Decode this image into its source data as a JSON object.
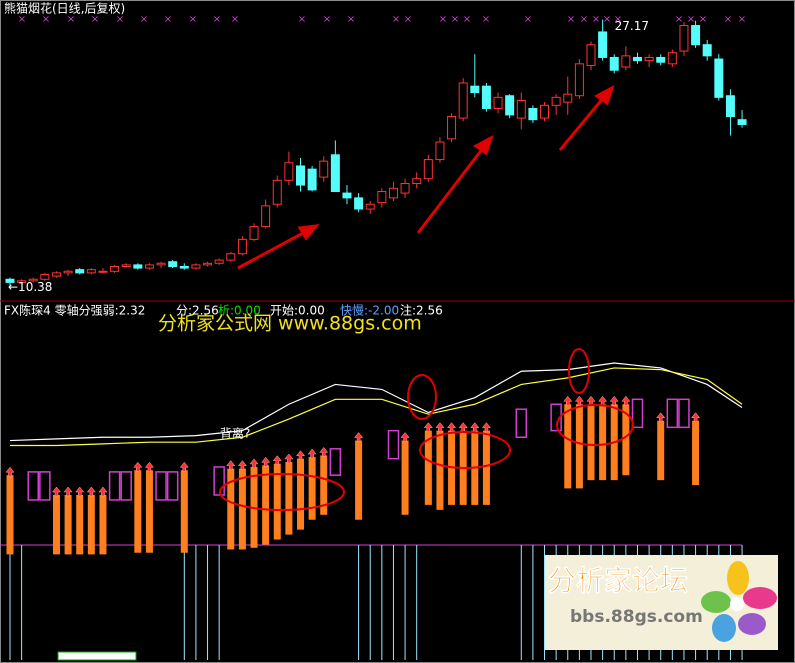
{
  "chart_data": [
    {
      "type": "candlestick",
      "title": "熊猫烟花(日线,后复权)",
      "high_label": "27.17",
      "low_label": "←10.38",
      "ylim": [
        9.6,
        28.4
      ],
      "up_color": "#ff3232",
      "down_color": "#54fcfc",
      "open": [
        10.9,
        10.7,
        10.8,
        10.9,
        11.1,
        11.3,
        11.5,
        11.3,
        11.4,
        11.4,
        11.7,
        11.8,
        11.6,
        11.8,
        12.0,
        11.7,
        11.6,
        11.8,
        11.9,
        12.1,
        12.5,
        13.4,
        14.2,
        15.6,
        17.1,
        18.0,
        17.8,
        17.3,
        18.7,
        16.3,
        16.0,
        15.3,
        15.7,
        16.0,
        16.3,
        16.9,
        17.2,
        18.4,
        19.7,
        21.0,
        23.0,
        23.0,
        21.6,
        22.4,
        21.0,
        21.6,
        21.0,
        21.8,
        22.0,
        22.4,
        24.3,
        26.4,
        24.8,
        24.2,
        24.8,
        24.6,
        24.8,
        24.4,
        25.2,
        26.8,
        25.6,
        24.7,
        22.4,
        20.9
      ],
      "high": [
        11.0,
        10.9,
        11.0,
        11.3,
        11.4,
        11.5,
        11.6,
        11.6,
        11.6,
        11.8,
        11.9,
        11.9,
        11.9,
        12.0,
        12.1,
        11.9,
        11.9,
        12.0,
        12.2,
        12.6,
        13.6,
        14.4,
        15.9,
        17.4,
        18.9,
        18.5,
        18.0,
        18.6,
        19.6,
        16.8,
        16.3,
        15.8,
        16.6,
        17.0,
        17.2,
        17.6,
        18.7,
        19.8,
        21.3,
        23.5,
        25.0,
        23.2,
        22.6,
        22.5,
        22.6,
        21.8,
        22.0,
        22.5,
        23.6,
        24.7,
        25.8,
        27.17,
        25.0,
        25.5,
        25.1,
        25.0,
        25.0,
        25.3,
        27.0,
        27.1,
        25.9,
        25.0,
        22.8,
        21.5
      ],
      "low": [
        10.38,
        10.6,
        10.7,
        10.8,
        11.0,
        11.1,
        11.2,
        11.2,
        11.3,
        11.3,
        11.6,
        11.5,
        11.5,
        11.6,
        11.6,
        11.5,
        11.5,
        11.7,
        11.8,
        12.0,
        12.4,
        13.3,
        14.1,
        15.4,
        16.8,
        16.4,
        16.4,
        17.0,
        16.4,
        15.6,
        15.1,
        15.0,
        15.4,
        15.8,
        16.0,
        16.6,
        17.0,
        18.2,
        19.5,
        20.8,
        22.3,
        21.4,
        21.3,
        21.0,
        20.3,
        20.7,
        20.8,
        21.2,
        21.2,
        22.2,
        24.0,
        24.6,
        23.8,
        24.0,
        24.4,
        24.2,
        24.3,
        24.2,
        24.9,
        25.4,
        24.6,
        22.1,
        19.9,
        20.4
      ],
      "close": [
        10.7,
        10.8,
        10.9,
        11.2,
        11.3,
        11.4,
        11.3,
        11.5,
        11.4,
        11.7,
        11.8,
        11.6,
        11.8,
        11.9,
        11.7,
        11.6,
        11.8,
        11.9,
        12.1,
        12.5,
        13.4,
        14.2,
        15.5,
        17.1,
        18.2,
        16.8,
        16.5,
        18.3,
        16.4,
        16.0,
        15.3,
        15.6,
        16.4,
        16.6,
        16.9,
        17.2,
        18.4,
        19.5,
        21.1,
        23.2,
        22.6,
        21.6,
        22.3,
        21.2,
        22.1,
        20.9,
        21.8,
        22.3,
        22.5,
        24.4,
        25.6,
        24.8,
        24.0,
        24.9,
        24.6,
        24.8,
        24.5,
        25.1,
        26.8,
        25.6,
        24.9,
        22.3,
        21.1,
        20.6
      ]
    },
    {
      "type": "indicator",
      "title": "FX陈琛4 零轴分强弱:2.32",
      "readouts": [
        {
          "text": "分:2.56",
          "color": "#ffffff"
        },
        {
          "text": "析:0.00",
          "color": "#00e000"
        },
        {
          "text": "开始:0.00",
          "color": "#ffffff"
        },
        {
          "text": "快慢:-2.00",
          "color": "#5aa0ff"
        },
        {
          "text": "注:2.56",
          "color": "#ffffff"
        }
      ],
      "watermark": "分析家公式网 www.88gs.com",
      "annotation": "背离?",
      "logo": {
        "title": "分析家论坛",
        "url": "bbs.88gs.com"
      },
      "ylim": [
        -12,
        8
      ],
      "series": [
        {
          "name": "fast",
          "color": "#ffffff",
          "x": [
            0,
            4,
            8,
            12,
            16,
            20,
            24,
            28,
            32,
            36,
            40,
            44,
            48,
            52,
            56,
            60,
            63
          ],
          "values": [
            1.3,
            1.4,
            1.5,
            1.5,
            1.6,
            1.9,
            3.5,
            4.7,
            4.4,
            3.0,
            3.9,
            5.5,
            5.6,
            6.0,
            5.7,
            4.7,
            3.3
          ]
        },
        {
          "name": "slow",
          "color": "#ffff40",
          "x": [
            0,
            4,
            8,
            12,
            16,
            20,
            24,
            28,
            32,
            36,
            40,
            44,
            48,
            52,
            56,
            60,
            63
          ],
          "values": [
            1.0,
            1.0,
            1.1,
            1.2,
            1.2,
            1.5,
            2.6,
            3.8,
            3.8,
            2.9,
            3.5,
            4.7,
            5.1,
            5.7,
            5.6,
            5.0,
            3.5
          ]
        }
      ],
      "bars": {
        "color": "#ff7f1e",
        "x": [
          0,
          4,
          5,
          6,
          7,
          8,
          11,
          12,
          15,
          19,
          20,
          21,
          22,
          23,
          24,
          25,
          26,
          27,
          30,
          34,
          36,
          37,
          38,
          39,
          40,
          41,
          48,
          49,
          50,
          51,
          52,
          53,
          56,
          59
        ],
        "high": [
          -0.8,
          -2.0,
          -2.0,
          -2.0,
          -2.0,
          -2.0,
          -0.5,
          -0.5,
          -0.5,
          -0.4,
          -0.4,
          -0.3,
          -0.2,
          -0.1,
          0,
          0.2,
          0.3,
          0.4,
          1.3,
          1.3,
          1.9,
          1.9,
          1.9,
          1.9,
          1.9,
          1.9,
          3.5,
          3.5,
          3.5,
          3.5,
          3.5,
          3.5,
          2.5,
          2.5
        ],
        "low": [
          -5.6,
          -5.6,
          -5.6,
          -5.6,
          -5.6,
          -5.6,
          -5.5,
          -5.5,
          -5.5,
          -5.3,
          -5.3,
          -5.2,
          -5.0,
          -4.7,
          -4.4,
          -4.1,
          -3.5,
          -3.2,
          -3.5,
          -3.2,
          -2.6,
          -2.9,
          -2.6,
          -2.6,
          -2.6,
          -2.6,
          -1.6,
          -1.6,
          -1.1,
          -1.1,
          -1.1,
          -0.8,
          -1.1,
          -1.4
        ]
      },
      "boxes": {
        "color": "#d040d0",
        "x": [
          2,
          3,
          9,
          10,
          13,
          14,
          18,
          28,
          33,
          44,
          47,
          54,
          57,
          58
        ],
        "high": [
          -0.6,
          -0.6,
          -0.6,
          -0.6,
          -0.6,
          -0.6,
          -0.3,
          0.8,
          1.9,
          3.2,
          3.5,
          3.8,
          3.8,
          3.8
        ],
        "low": [
          -2.3,
          -2.3,
          -2.3,
          -2.3,
          -2.3,
          -2.3,
          -2.0,
          -0.8,
          0.2,
          1.5,
          1.9,
          2.1,
          2.1,
          2.1
        ]
      },
      "spikes": {
        "color": "#9fe8ff",
        "x": [
          0,
          1,
          15,
          16,
          17,
          18,
          30,
          31,
          32,
          33,
          34,
          35,
          44,
          45,
          46,
          47,
          48,
          49,
          50,
          51,
          52,
          53,
          54,
          55,
          56,
          57,
          58,
          59,
          60,
          61,
          62,
          63
        ]
      }
    }
  ]
}
